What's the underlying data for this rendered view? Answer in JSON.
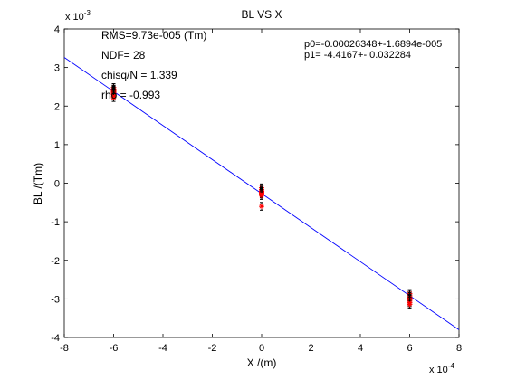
{
  "chart_data": {
    "type": "scatter",
    "title": "BL VS X",
    "xlabel": "X /(m)",
    "ylabel": "BL /(Tm)",
    "x_multiplier": "x 10",
    "x_exponent": "-4",
    "y_multiplier": "x 10",
    "y_exponent": "-3",
    "xlim": [
      -8,
      8
    ],
    "ylim": [
      -4,
      4
    ],
    "x_ticks": [
      -8,
      -6,
      -4,
      -2,
      0,
      2,
      4,
      6,
      8
    ],
    "y_ticks": [
      -4,
      -3,
      -2,
      -1,
      0,
      1,
      2,
      3,
      4
    ],
    "grid": false,
    "colors": {
      "fit_line": "#0000ff",
      "points": "#ff0000",
      "error_bars": "#000000",
      "axes": "#000000"
    },
    "fit_line": {
      "x": [
        -8,
        8
      ],
      "y": [
        3.26,
        -3.8
      ]
    },
    "series": [
      {
        "marker": "red-asterisk",
        "x": [
          -6,
          -6,
          -6,
          -6,
          -6,
          -6,
          -6,
          -6,
          -6,
          -6,
          -6,
          0,
          0,
          0,
          0,
          0,
          0,
          0,
          0,
          0,
          6,
          6,
          6,
          6,
          6,
          6,
          6,
          6,
          6
        ],
        "y": [
          2.48,
          2.44,
          2.42,
          2.4,
          2.38,
          2.36,
          2.34,
          2.32,
          2.3,
          2.26,
          2.22,
          -0.12,
          -0.16,
          -0.2,
          -0.22,
          -0.24,
          -0.26,
          -0.28,
          -0.32,
          -0.6,
          -2.86,
          -2.9,
          -2.94,
          -2.98,
          -3.0,
          -3.02,
          -3.06,
          -3.1,
          -3.14
        ],
        "yerr": [
          0.1,
          0.1,
          0.1,
          0.1,
          0.1,
          0.1,
          0.1,
          0.1,
          0.1,
          0.1,
          0.1,
          0.1,
          0.1,
          0.1,
          0.1,
          0.1,
          0.1,
          0.1,
          0.1,
          0.1,
          0.1,
          0.1,
          0.1,
          0.1,
          0.1,
          0.1,
          0.1,
          0.1,
          0.1
        ]
      }
    ],
    "annotations": {
      "rms": "RMS=9.73e-005 (Tm)",
      "ndf": "NDF=   28",
      "chisq": "chisq/N = 1.339",
      "rho": "rho    = -0.993",
      "p0": "p0=-0.00026348+-1.6894e-005",
      "p1": "p1=  -4.4167+- 0.032284"
    }
  }
}
